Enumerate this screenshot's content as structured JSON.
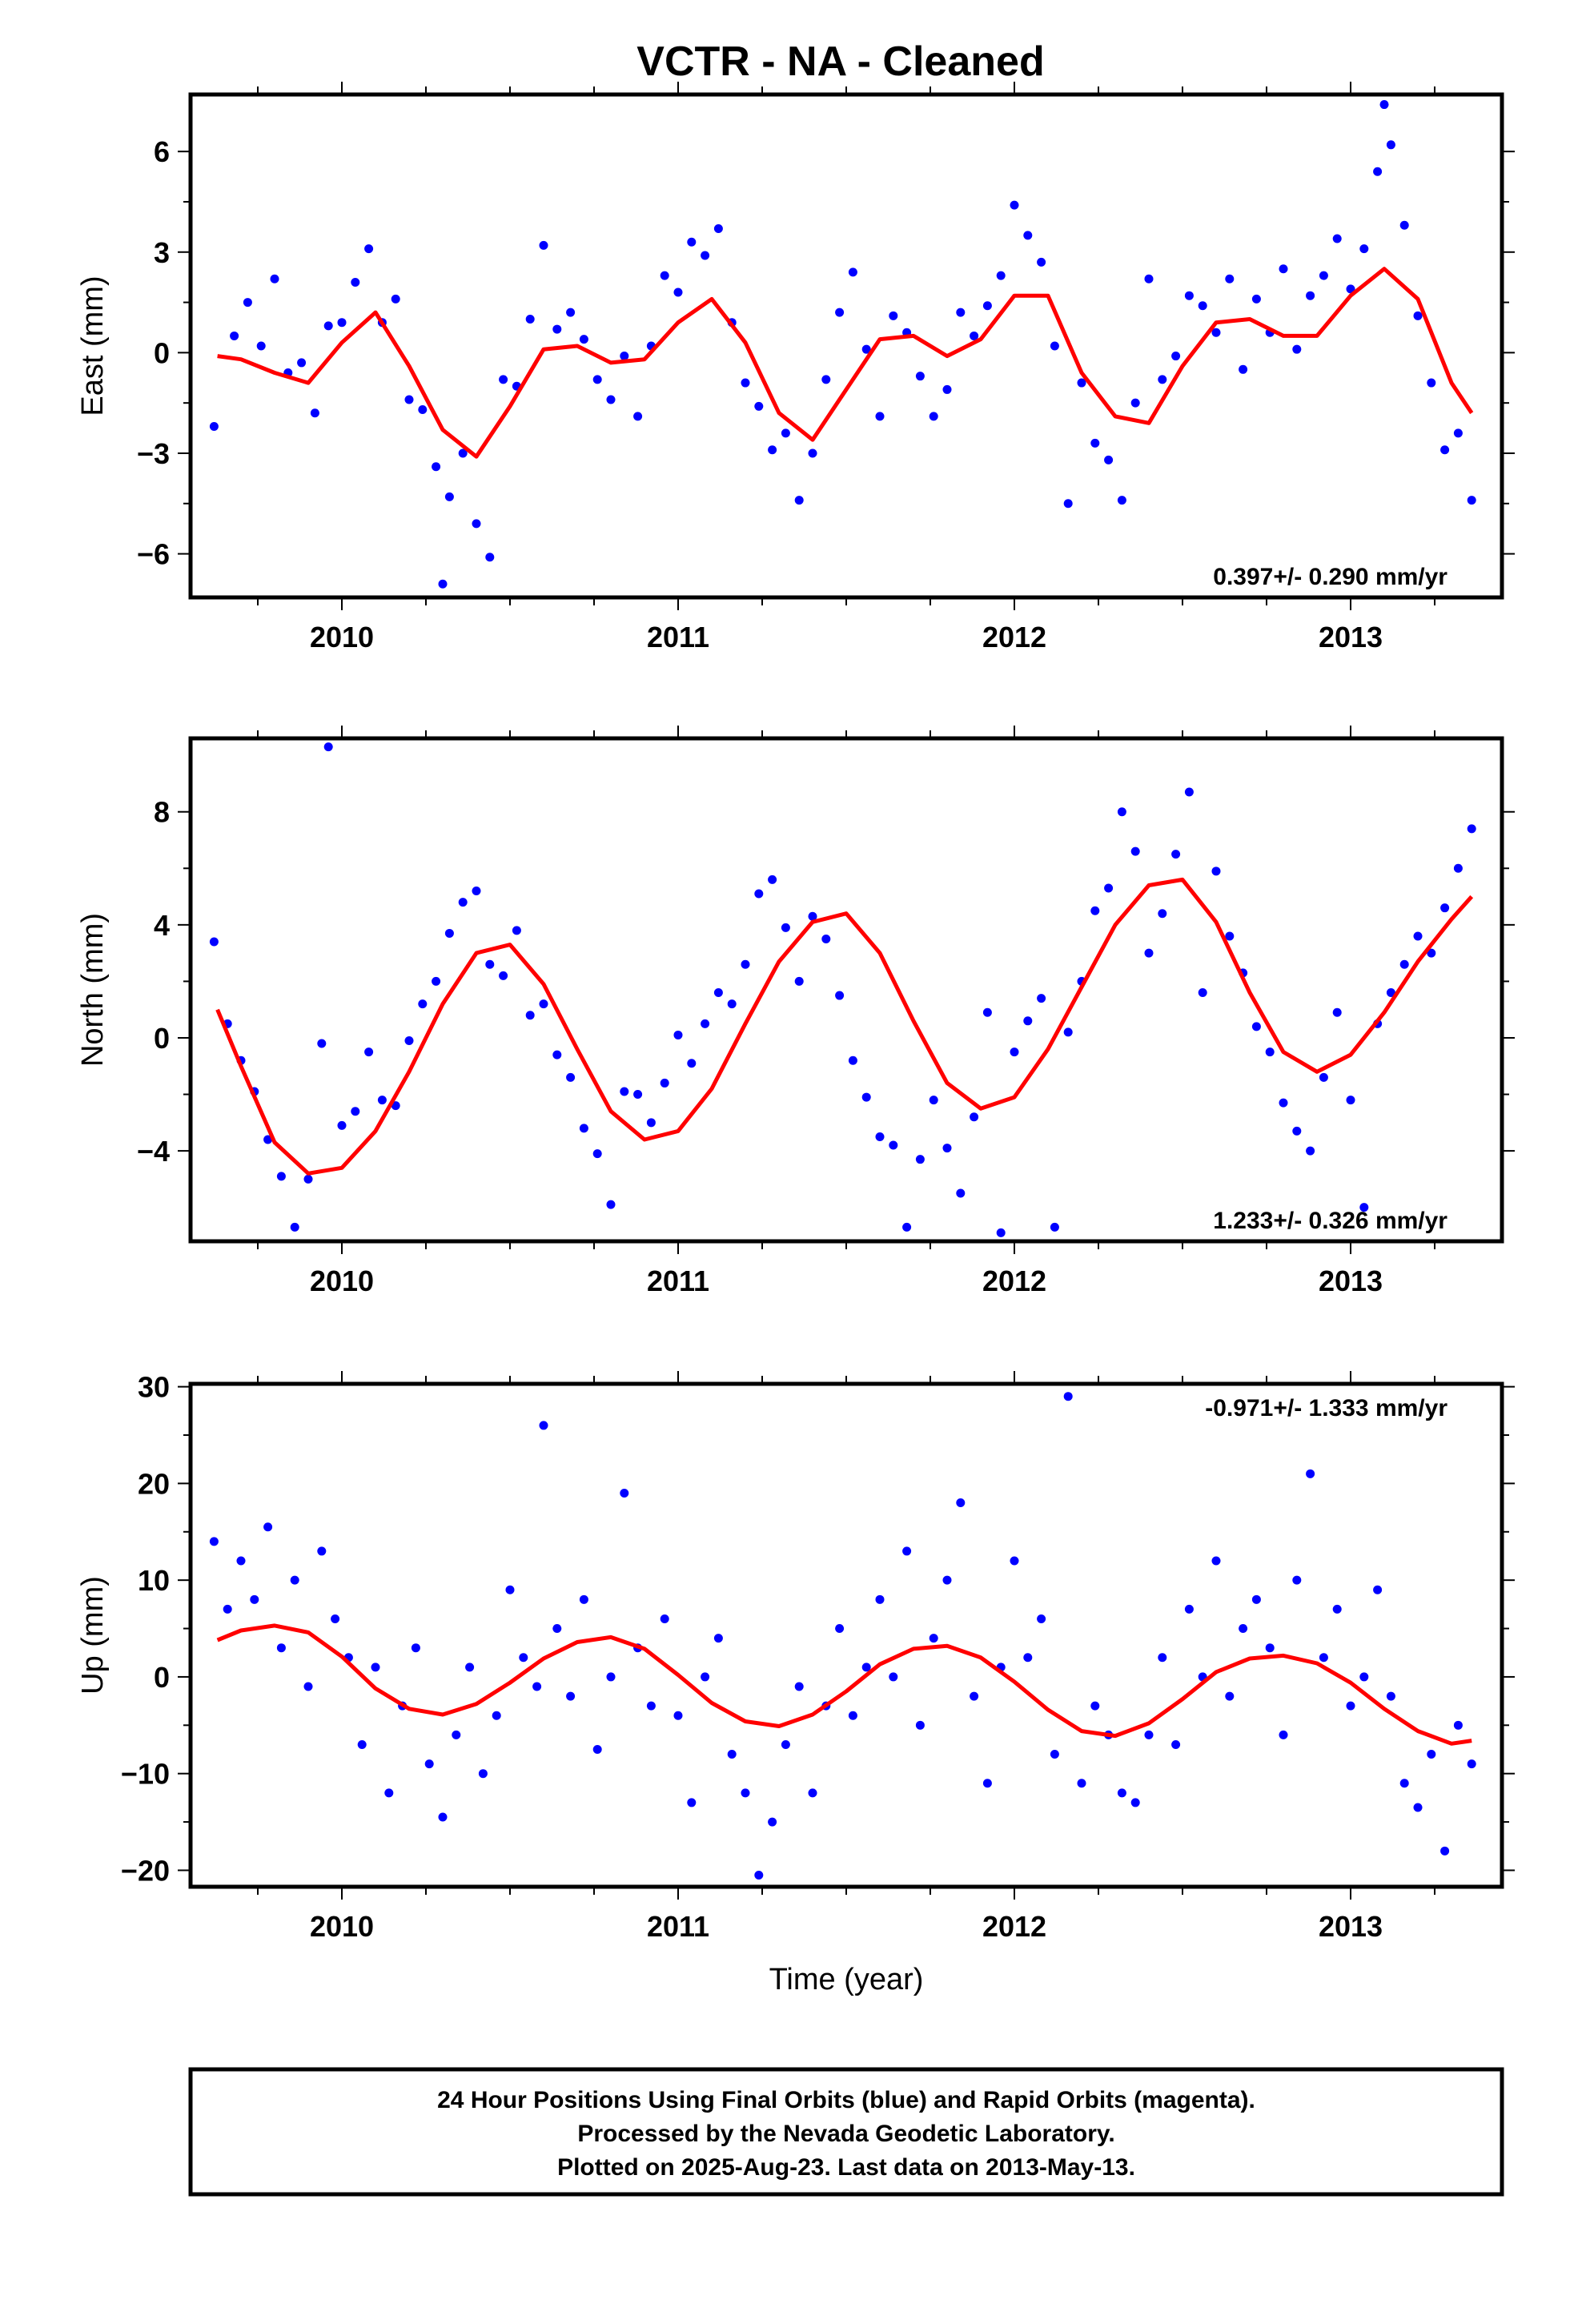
{
  "page": {
    "title": "VCTR  - NA - Cleaned",
    "footer": {
      "lines": [
        "24 Hour Positions Using Final Orbits (blue) and Rapid Orbits (magenta).",
        "Processed by the Nevada Geodetic Laboratory.",
        "Plotted on 2025-Aug-23. Last data on 2013-May-13."
      ]
    }
  },
  "colors": {
    "points": "#0000ff",
    "fit": "#ff0000",
    "frame": "#000000"
  },
  "chart_data": [
    {
      "type": "scatter",
      "component": "east",
      "ylabel": "East (mm)",
      "xlabel": "",
      "xlim": [
        2009.55,
        2013.45
      ],
      "ylim": [
        -7.3,
        7.7
      ],
      "yticks": [
        -6,
        -3,
        0,
        3,
        6
      ],
      "ytick_labels": [
        "−6",
        "−3",
        "0",
        "3",
        "6"
      ],
      "xticks": [
        2010,
        2011,
        2012,
        2013
      ],
      "xtick_labels": [
        "2010",
        "2011",
        "2012",
        "2013"
      ],
      "rate_label": "0.397+/- 0.290 mm/yr",
      "rate_position": "bottom-right",
      "fit": {
        "x": [
          2009.63,
          2009.7,
          2009.8,
          2009.9,
          2010.0,
          2010.1,
          2010.2,
          2010.3,
          2010.4,
          2010.5,
          2010.6,
          2010.7,
          2010.8,
          2010.9,
          2011.0,
          2011.1,
          2011.2,
          2011.3,
          2011.4,
          2011.5,
          2011.6,
          2011.7,
          2011.8,
          2011.9,
          2012.0,
          2012.1,
          2012.2,
          2012.3,
          2012.4,
          2012.5,
          2012.6,
          2012.7,
          2012.8,
          2012.9,
          2013.0,
          2013.1,
          2013.2,
          2013.3,
          2013.36
        ],
        "y": [
          -0.1,
          -0.2,
          -0.6,
          -0.9,
          0.3,
          1.2,
          -0.4,
          -2.3,
          -3.1,
          -1.6,
          0.1,
          0.2,
          -0.3,
          -0.2,
          0.9,
          1.6,
          0.3,
          -1.8,
          -2.6,
          -1.1,
          0.4,
          0.5,
          -0.1,
          0.4,
          1.7,
          1.7,
          -0.6,
          -1.9,
          -2.1,
          -0.4,
          0.9,
          1.0,
          0.5,
          0.5,
          1.7,
          2.5,
          1.6,
          -0.9,
          -1.8
        ]
      },
      "points": {
        "x": [
          2009.62,
          2009.68,
          2009.72,
          2009.76,
          2009.8,
          2009.84,
          2009.88,
          2009.92,
          2009.96,
          2010.0,
          2010.04,
          2010.08,
          2010.12,
          2010.16,
          2010.2,
          2010.24,
          2010.28,
          2010.3,
          2010.32,
          2010.36,
          2010.4,
          2010.44,
          2010.48,
          2010.52,
          2010.56,
          2010.6,
          2010.64,
          2010.68,
          2010.72,
          2010.76,
          2010.8,
          2010.84,
          2010.88,
          2010.92,
          2010.96,
          2011.0,
          2011.04,
          2011.08,
          2011.12,
          2011.16,
          2011.2,
          2011.24,
          2011.28,
          2011.32,
          2011.36,
          2011.4,
          2011.44,
          2011.48,
          2011.52,
          2011.56,
          2011.6,
          2011.64,
          2011.68,
          2011.72,
          2011.76,
          2011.8,
          2011.84,
          2011.88,
          2011.92,
          2011.96,
          2012.0,
          2012.04,
          2012.08,
          2012.12,
          2012.16,
          2012.2,
          2012.24,
          2012.28,
          2012.32,
          2012.36,
          2012.4,
          2012.44,
          2012.48,
          2012.52,
          2012.56,
          2012.6,
          2012.64,
          2012.68,
          2012.72,
          2012.76,
          2012.8,
          2012.84,
          2012.88,
          2012.92,
          2012.96,
          2013.0,
          2013.04,
          2013.08,
          2013.1,
          2013.12,
          2013.16,
          2013.2,
          2013.24,
          2013.28,
          2013.32,
          2013.36
        ],
        "y": [
          -2.2,
          0.5,
          1.5,
          0.2,
          2.2,
          -0.6,
          -0.3,
          -1.8,
          0.8,
          0.9,
          2.1,
          3.1,
          0.9,
          1.6,
          -1.4,
          -1.7,
          -3.4,
          -6.9,
          -4.3,
          -3.0,
          -5.1,
          -6.1,
          -0.8,
          -1.0,
          1.0,
          3.2,
          0.7,
          1.2,
          0.4,
          -0.8,
          -1.4,
          -0.1,
          -1.9,
          0.2,
          2.3,
          1.8,
          3.3,
          2.9,
          3.7,
          0.9,
          -0.9,
          -1.6,
          -2.9,
          -2.4,
          -4.4,
          -3.0,
          -0.8,
          1.2,
          2.4,
          0.1,
          -1.9,
          1.1,
          0.6,
          -0.7,
          -1.9,
          -1.1,
          1.2,
          0.5,
          1.4,
          2.3,
          4.4,
          3.5,
          2.7,
          0.2,
          -4.5,
          -0.9,
          -2.7,
          -3.2,
          -4.4,
          -1.5,
          2.2,
          -0.8,
          -0.1,
          1.7,
          1.4,
          0.6,
          2.2,
          -0.5,
          1.6,
          0.6,
          2.5,
          0.1,
          1.7,
          2.3,
          3.4,
          1.9,
          3.1,
          5.4,
          7.4,
          6.2,
          3.8,
          1.1,
          -0.9,
          -2.9,
          -2.4,
          -4.4
        ]
      }
    },
    {
      "type": "scatter",
      "component": "north",
      "ylabel": "North (mm)",
      "xlabel": "",
      "xlim": [
        2009.55,
        2013.45
      ],
      "ylim": [
        -7.2,
        10.6
      ],
      "yticks": [
        -4,
        0,
        4,
        8
      ],
      "ytick_labels": [
        "−4",
        "0",
        "4",
        "8"
      ],
      "xticks": [
        2010,
        2011,
        2012,
        2013
      ],
      "xtick_labels": [
        "2010",
        "2011",
        "2012",
        "2013"
      ],
      "rate_label": "1.233+/- 0.326 mm/yr",
      "rate_position": "bottom-right",
      "fit": {
        "x": [
          2009.63,
          2009.7,
          2009.8,
          2009.9,
          2010.0,
          2010.1,
          2010.2,
          2010.3,
          2010.4,
          2010.5,
          2010.6,
          2010.7,
          2010.8,
          2010.9,
          2011.0,
          2011.1,
          2011.2,
          2011.3,
          2011.4,
          2011.5,
          2011.6,
          2011.7,
          2011.8,
          2011.9,
          2012.0,
          2012.1,
          2012.2,
          2012.3,
          2012.4,
          2012.5,
          2012.6,
          2012.7,
          2012.8,
          2012.9,
          2013.0,
          2013.1,
          2013.2,
          2013.3,
          2013.36
        ],
        "y": [
          1.0,
          -1.0,
          -3.7,
          -4.8,
          -4.6,
          -3.3,
          -1.2,
          1.2,
          3.0,
          3.3,
          1.9,
          -0.4,
          -2.6,
          -3.6,
          -3.3,
          -1.8,
          0.5,
          2.7,
          4.1,
          4.4,
          3.0,
          0.6,
          -1.6,
          -2.5,
          -2.1,
          -0.4,
          1.8,
          4.0,
          5.4,
          5.6,
          4.1,
          1.6,
          -0.5,
          -1.2,
          -0.6,
          0.9,
          2.7,
          4.2,
          5.0
        ]
      },
      "points": {
        "x": [
          2009.62,
          2009.66,
          2009.7,
          2009.74,
          2009.78,
          2009.82,
          2009.86,
          2009.9,
          2009.94,
          2009.96,
          2010.0,
          2010.04,
          2010.08,
          2010.12,
          2010.16,
          2010.2,
          2010.24,
          2010.28,
          2010.32,
          2010.36,
          2010.4,
          2010.44,
          2010.48,
          2010.52,
          2010.56,
          2010.6,
          2010.64,
          2010.68,
          2010.72,
          2010.76,
          2010.8,
          2010.84,
          2010.88,
          2010.92,
          2010.96,
          2011.0,
          2011.04,
          2011.08,
          2011.12,
          2011.16,
          2011.2,
          2011.24,
          2011.28,
          2011.32,
          2011.36,
          2011.4,
          2011.44,
          2011.48,
          2011.52,
          2011.56,
          2011.6,
          2011.64,
          2011.68,
          2011.72,
          2011.76,
          2011.8,
          2011.84,
          2011.88,
          2011.92,
          2011.96,
          2012.0,
          2012.04,
          2012.08,
          2012.12,
          2012.16,
          2012.2,
          2012.24,
          2012.28,
          2012.32,
          2012.36,
          2012.4,
          2012.44,
          2012.48,
          2012.52,
          2012.56,
          2012.6,
          2012.64,
          2012.68,
          2012.72,
          2012.76,
          2012.8,
          2012.84,
          2012.88,
          2012.92,
          2012.96,
          2013.0,
          2013.04,
          2013.08,
          2013.12,
          2013.16,
          2013.2,
          2013.24,
          2013.28,
          2013.32,
          2013.36
        ],
        "y": [
          3.4,
          0.5,
          -0.8,
          -1.9,
          -3.6,
          -4.9,
          -6.7,
          -5.0,
          -0.2,
          10.3,
          -3.1,
          -2.6,
          -0.5,
          -2.2,
          -2.4,
          -0.1,
          1.2,
          2.0,
          3.7,
          4.8,
          5.2,
          2.6,
          2.2,
          3.8,
          0.8,
          1.2,
          -0.6,
          -1.4,
          -3.2,
          -4.1,
          -5.9,
          -1.9,
          -2.0,
          -3.0,
          -1.6,
          0.1,
          -0.9,
          0.5,
          1.6,
          1.2,
          2.6,
          5.1,
          5.6,
          3.9,
          2.0,
          4.3,
          3.5,
          1.5,
          -0.8,
          -2.1,
          -3.5,
          -3.8,
          -6.7,
          -4.3,
          -2.2,
          -3.9,
          -5.5,
          -2.8,
          0.9,
          -6.9,
          -0.5,
          0.6,
          1.4,
          -6.7,
          0.2,
          2.0,
          4.5,
          5.3,
          8.0,
          6.6,
          3.0,
          4.4,
          6.5,
          8.7,
          1.6,
          5.9,
          3.6,
          2.3,
          0.4,
          -0.5,
          -2.3,
          -3.3,
          -4.0,
          -1.4,
          0.9,
          -2.2,
          -6.0,
          0.5,
          1.6,
          2.6,
          3.6,
          3.0,
          4.6,
          6.0,
          7.4
        ]
      }
    },
    {
      "type": "scatter",
      "component": "up",
      "ylabel": "Up (mm)",
      "xlabel": "Time (year)",
      "xlim": [
        2009.55,
        2013.45
      ],
      "ylim": [
        -21.7,
        30.3
      ],
      "yticks": [
        -20,
        -10,
        0,
        10,
        20,
        30
      ],
      "ytick_labels": [
        "−20",
        "−10",
        "0",
        "10",
        "20",
        "30"
      ],
      "xticks": [
        2010,
        2011,
        2012,
        2013
      ],
      "xtick_labels": [
        "2010",
        "2011",
        "2012",
        "2013"
      ],
      "rate_label": "-0.971+/- 1.333 mm/yr",
      "rate_position": "top-right",
      "fit": {
        "x": [
          2009.63,
          2009.7,
          2009.8,
          2009.9,
          2010.0,
          2010.1,
          2010.2,
          2010.3,
          2010.4,
          2010.5,
          2010.6,
          2010.7,
          2010.8,
          2010.9,
          2011.0,
          2011.1,
          2011.2,
          2011.3,
          2011.4,
          2011.5,
          2011.6,
          2011.7,
          2011.8,
          2011.9,
          2012.0,
          2012.1,
          2012.2,
          2012.3,
          2012.4,
          2012.5,
          2012.6,
          2012.7,
          2012.8,
          2012.9,
          2013.0,
          2013.1,
          2013.2,
          2013.3,
          2013.36
        ],
        "y": [
          3.8,
          4.8,
          5.3,
          4.6,
          2.1,
          -1.2,
          -3.3,
          -3.9,
          -2.8,
          -0.6,
          1.9,
          3.6,
          4.1,
          2.9,
          0.2,
          -2.7,
          -4.6,
          -5.1,
          -3.9,
          -1.5,
          1.3,
          2.9,
          3.2,
          2.0,
          -0.5,
          -3.4,
          -5.6,
          -6.1,
          -4.8,
          -2.3,
          0.5,
          1.9,
          2.2,
          1.4,
          -0.6,
          -3.3,
          -5.6,
          -6.9,
          -6.6
        ]
      },
      "points": {
        "x": [
          2009.62,
          2009.66,
          2009.7,
          2009.74,
          2009.78,
          2009.82,
          2009.86,
          2009.9,
          2009.94,
          2009.98,
          2010.02,
          2010.06,
          2010.1,
          2010.14,
          2010.18,
          2010.22,
          2010.26,
          2010.3,
          2010.34,
          2010.38,
          2010.42,
          2010.46,
          2010.5,
          2010.54,
          2010.58,
          2010.6,
          2010.64,
          2010.68,
          2010.72,
          2010.76,
          2010.8,
          2010.84,
          2010.88,
          2010.92,
          2010.96,
          2011.0,
          2011.04,
          2011.08,
          2011.12,
          2011.16,
          2011.2,
          2011.24,
          2011.28,
          2011.32,
          2011.36,
          2011.4,
          2011.44,
          2011.48,
          2011.52,
          2011.56,
          2011.6,
          2011.64,
          2011.68,
          2011.72,
          2011.76,
          2011.8,
          2011.84,
          2011.88,
          2011.92,
          2011.96,
          2012.0,
          2012.04,
          2012.08,
          2012.12,
          2012.16,
          2012.2,
          2012.24,
          2012.28,
          2012.32,
          2012.36,
          2012.4,
          2012.44,
          2012.48,
          2012.52,
          2012.56,
          2012.6,
          2012.64,
          2012.68,
          2012.72,
          2012.76,
          2012.8,
          2012.84,
          2012.88,
          2012.92,
          2012.96,
          2013.0,
          2013.04,
          2013.08,
          2013.12,
          2013.16,
          2013.2,
          2013.24,
          2013.28,
          2013.32,
          2013.36
        ],
        "y": [
          14.0,
          7.0,
          12.0,
          8.0,
          15.5,
          3.0,
          10.0,
          -1.0,
          13.0,
          6.0,
          2.0,
          -7.0,
          1.0,
          -12.0,
          -3.0,
          3.0,
          -9.0,
          -14.5,
          -6.0,
          1.0,
          -10.0,
          -4.0,
          9.0,
          2.0,
          -1.0,
          26.0,
          5.0,
          -2.0,
          8.0,
          -7.5,
          0.0,
          19.0,
          3.0,
          -3.0,
          6.0,
          -4.0,
          -13.0,
          0.0,
          4.0,
          -8.0,
          -12.0,
          -20.5,
          -15.0,
          -7.0,
          -1.0,
          -12.0,
          -3.0,
          5.0,
          -4.0,
          1.0,
          8.0,
          0.0,
          13.0,
          -5.0,
          4.0,
          10.0,
          18.0,
          -2.0,
          -11.0,
          1.0,
          12.0,
          2.0,
          6.0,
          -8.0,
          29.0,
          -11.0,
          -3.0,
          -6.0,
          -12.0,
          -13.0,
          -6.0,
          2.0,
          -7.0,
          7.0,
          0.0,
          12.0,
          -2.0,
          5.0,
          8.0,
          3.0,
          -6.0,
          10.0,
          21.0,
          2.0,
          7.0,
          -3.0,
          0.0,
          9.0,
          -2.0,
          -11.0,
          -13.5,
          -8.0,
          -18.0,
          -5.0,
          -9.0
        ]
      }
    }
  ]
}
